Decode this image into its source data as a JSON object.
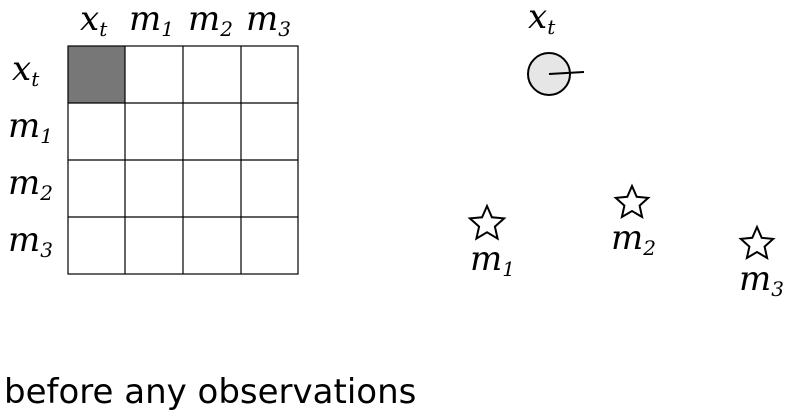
{
  "matrix": {
    "column_labels": [
      {
        "base": "x",
        "sub": "t"
      },
      {
        "base": "m",
        "sub": "1"
      },
      {
        "base": "m",
        "sub": "2"
      },
      {
        "base": "m",
        "sub": "3"
      }
    ],
    "row_labels": [
      {
        "base": "x",
        "sub": "t"
      },
      {
        "base": "m",
        "sub": "1"
      },
      {
        "base": "m",
        "sub": "2"
      },
      {
        "base": "m",
        "sub": "3"
      }
    ],
    "filled_cells": [
      [
        0,
        0
      ]
    ],
    "fill_color": "#777777"
  },
  "scene": {
    "robot": {
      "base": "x",
      "sub": "t",
      "icon": "robot-circle-icon",
      "color": "#e6e6e6"
    },
    "landmarks": [
      {
        "base": "m",
        "sub": "1",
        "icon": "star-icon"
      },
      {
        "base": "m",
        "sub": "2",
        "icon": "star-icon"
      },
      {
        "base": "m",
        "sub": "3",
        "icon": "star-icon"
      }
    ]
  },
  "caption": "before any observations"
}
